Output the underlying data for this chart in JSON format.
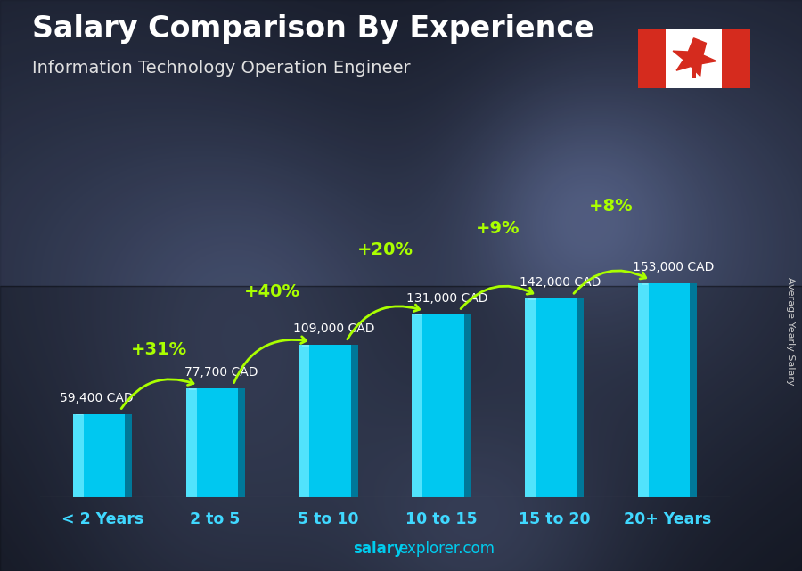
{
  "title": "Salary Comparison By Experience",
  "subtitle": "Information Technology Operation Engineer",
  "categories": [
    "< 2 Years",
    "2 to 5",
    "5 to 10",
    "10 to 15",
    "15 to 20",
    "20+ Years"
  ],
  "values": [
    59400,
    77700,
    109000,
    131000,
    142000,
    153000
  ],
  "salary_labels": [
    "59,400 CAD",
    "77,700 CAD",
    "109,000 CAD",
    "131,000 CAD",
    "142,000 CAD",
    "153,000 CAD"
  ],
  "pct_labels": [
    "+31%",
    "+40%",
    "+20%",
    "+9%",
    "+8%"
  ],
  "bar_color_main": "#00c8f0",
  "bar_color_light": "#60e8ff",
  "bar_color_dark": "#0090b8",
  "bar_color_right": "#007090",
  "bg_dark": "#1a1a28",
  "title_color": "#ffffff",
  "subtitle_color": "#e0e0e0",
  "salary_label_color": "#ffffff",
  "pct_color": "#aaff00",
  "cat_label_color": "#40d8ff",
  "ylabel": "Average Yearly Salary",
  "ylabel_color": "#cccccc",
  "watermark_bold": "salary",
  "watermark_normal": "explorer.com",
  "figsize": [
    9.0,
    6.41
  ],
  "dpi": 100,
  "bar_width": 0.52,
  "ylim_factor": 1.55
}
